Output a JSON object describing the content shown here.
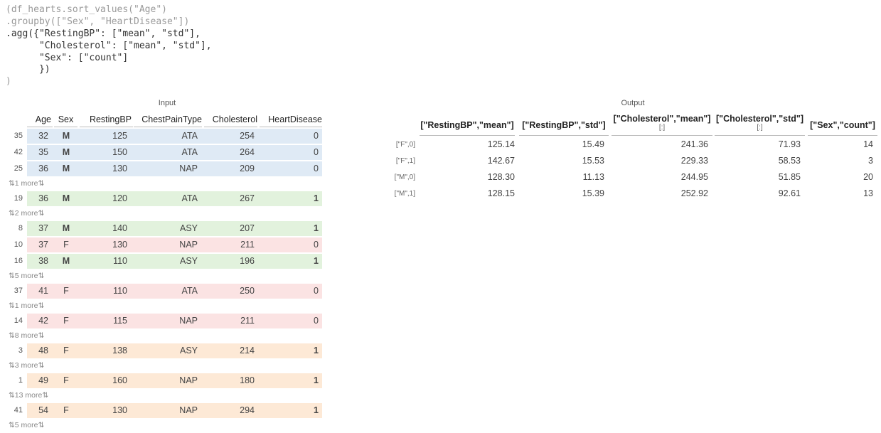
{
  "code": {
    "lines": [
      "(df_hearts.sort_values(\"Age\")",
      ".groupby([\"Sex\", \"HeartDisease\"])",
      ".agg({\"RestingBP\": [\"mean\", \"std\"],",
      "      \"Cholesterol\": [\"mean\", \"std\"],",
      "      \"Sex\": [\"count\"]",
      "      })",
      ")"
    ]
  },
  "input": {
    "caption": "Input",
    "columns": [
      "Age",
      "Sex",
      "RestingBP",
      "ChestPainType",
      "Cholesterol",
      "HeartDisease"
    ],
    "rows": [
      {
        "kind": "row",
        "idx": "35",
        "age": "32",
        "sex": "M",
        "rbp": "125",
        "cpt": "ATA",
        "chol": "254",
        "hd": "0",
        "color": "blue"
      },
      {
        "kind": "row",
        "idx": "42",
        "age": "35",
        "sex": "M",
        "rbp": "150",
        "cpt": "ATA",
        "chol": "264",
        "hd": "0",
        "color": "blue"
      },
      {
        "kind": "row",
        "idx": "25",
        "age": "36",
        "sex": "M",
        "rbp": "130",
        "cpt": "NAP",
        "chol": "209",
        "hd": "0",
        "color": "blue"
      },
      {
        "kind": "more",
        "text": "⇅1 more⇅"
      },
      {
        "kind": "row",
        "idx": "19",
        "age": "36",
        "sex": "M",
        "rbp": "120",
        "cpt": "ATA",
        "chol": "267",
        "hd": "1",
        "color": "green"
      },
      {
        "kind": "more",
        "text": "⇅2 more⇅"
      },
      {
        "kind": "row",
        "idx": "8",
        "age": "37",
        "sex": "M",
        "rbp": "140",
        "cpt": "ASY",
        "chol": "207",
        "hd": "1",
        "color": "green"
      },
      {
        "kind": "row",
        "idx": "10",
        "age": "37",
        "sex": "F",
        "rbp": "130",
        "cpt": "NAP",
        "chol": "211",
        "hd": "0",
        "color": "red"
      },
      {
        "kind": "row",
        "idx": "16",
        "age": "38",
        "sex": "M",
        "rbp": "110",
        "cpt": "ASY",
        "chol": "196",
        "hd": "1",
        "color": "green"
      },
      {
        "kind": "more",
        "text": "⇅5 more⇅"
      },
      {
        "kind": "row",
        "idx": "37",
        "age": "41",
        "sex": "F",
        "rbp": "110",
        "cpt": "ATA",
        "chol": "250",
        "hd": "0",
        "color": "red"
      },
      {
        "kind": "more",
        "text": "⇅1 more⇅"
      },
      {
        "kind": "row",
        "idx": "14",
        "age": "42",
        "sex": "F",
        "rbp": "115",
        "cpt": "NAP",
        "chol": "211",
        "hd": "0",
        "color": "red"
      },
      {
        "kind": "more",
        "text": "⇅8 more⇅"
      },
      {
        "kind": "row",
        "idx": "3",
        "age": "48",
        "sex": "F",
        "rbp": "138",
        "cpt": "ASY",
        "chol": "214",
        "hd": "1",
        "color": "orange"
      },
      {
        "kind": "more",
        "text": "⇅3 more⇅"
      },
      {
        "kind": "row",
        "idx": "1",
        "age": "49",
        "sex": "F",
        "rbp": "160",
        "cpt": "NAP",
        "chol": "180",
        "hd": "1",
        "color": "orange"
      },
      {
        "kind": "more",
        "text": "⇅13 more⇅"
      },
      {
        "kind": "row",
        "idx": "41",
        "age": "54",
        "sex": "F",
        "rbp": "130",
        "cpt": "NAP",
        "chol": "294",
        "hd": "1",
        "color": "orange"
      },
      {
        "kind": "more",
        "text": "⇅5 more⇅"
      }
    ]
  },
  "output": {
    "caption": "Output",
    "columns": [
      {
        "line1": "[\"RestingBP\",\"mean\"]",
        "line2": ""
      },
      {
        "line1": "[\"RestingBP\",\"std\"]",
        "line2": ""
      },
      {
        "line1": "[\"Cholesterol\",\"mean\"]",
        "line2": "[:]"
      },
      {
        "line1": "[\"Cholesterol\",\"std\"]",
        "line2": "[:]"
      },
      {
        "line1": "[\"Sex\",\"count\"]",
        "line2": ""
      }
    ],
    "rows": [
      {
        "idx": "[\"F\",0]",
        "v1": "125.14",
        "v2": "15.49",
        "v3": "241.36",
        "v4": "71.93",
        "v5": "14"
      },
      {
        "idx": "[\"F\",1]",
        "v1": "142.67",
        "v2": "15.53",
        "v3": "229.33",
        "v4": "58.53",
        "v5": "3"
      },
      {
        "idx": "[\"M\",0]",
        "v1": "128.30",
        "v2": "11.13",
        "v3": "244.95",
        "v4": "51.85",
        "v5": "20"
      },
      {
        "idx": "[\"M\",1]",
        "v1": "128.15",
        "v2": "15.39",
        "v3": "252.92",
        "v4": "92.61",
        "v5": "13"
      }
    ]
  }
}
